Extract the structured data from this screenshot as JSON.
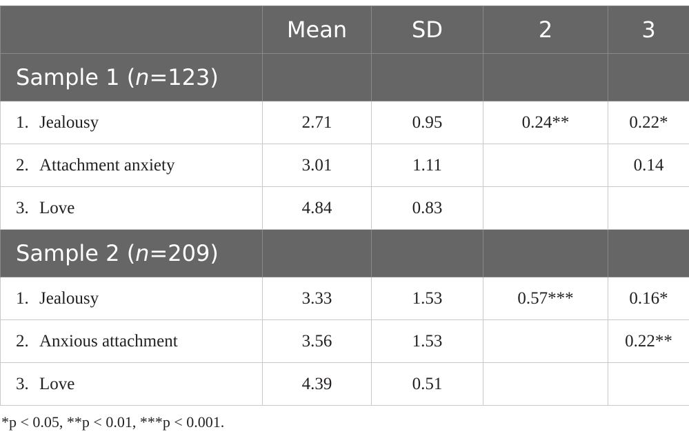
{
  "table": {
    "headers": [
      "",
      "Mean",
      "SD",
      "2",
      "3"
    ],
    "sections": [
      {
        "label_prefix": "Sample 1 (",
        "label_n": "n",
        "label_suffix": "=123)",
        "rows": [
          {
            "num": "1.",
            "name": "Jealousy",
            "mean": "2.71",
            "sd": "0.95",
            "c2": "0.24**",
            "c3": "0.22*"
          },
          {
            "num": "2.",
            "name": "Attachment anxiety",
            "mean": "3.01",
            "sd": "1.11",
            "c2": "",
            "c3": "0.14"
          },
          {
            "num": "3.",
            "name": "Love",
            "mean": "4.84",
            "sd": "0.83",
            "c2": "",
            "c3": ""
          }
        ]
      },
      {
        "label_prefix": "Sample 2 (",
        "label_n": "n",
        "label_suffix": "=209)",
        "rows": [
          {
            "num": "1.",
            "name": "Jealousy",
            "mean": "3.33",
            "sd": "1.53",
            "c2": "0.57***",
            "c3": "0.16*"
          },
          {
            "num": "2.",
            "name": "Anxious attachment",
            "mean": "3.56",
            "sd": "1.53",
            "c2": "",
            "c3": "0.22**"
          },
          {
            "num": "3.",
            "name": "Love",
            "mean": "4.39",
            "sd": "0.51",
            "c2": "",
            "c3": ""
          }
        ]
      }
    ]
  },
  "footnote": "*p < 0.05, **p < 0.01, ***p < 0.001."
}
